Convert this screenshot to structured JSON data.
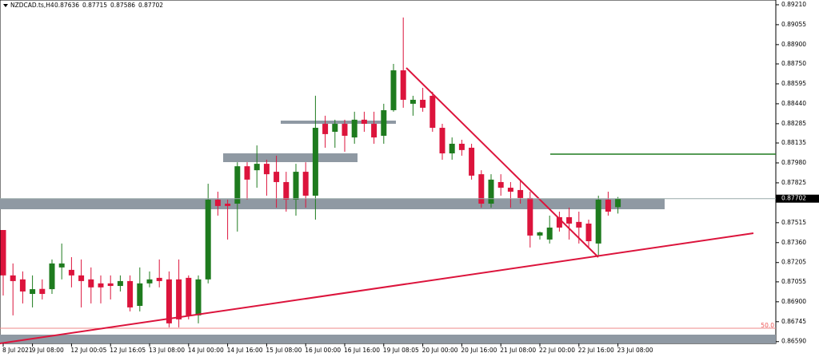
{
  "header": {
    "symbol": "NZDCAD.ts,H4",
    "ohlc": [
      0.87636,
      0.87715,
      0.87586,
      0.87702
    ]
  },
  "chart_data": {
    "type": "candlestick",
    "categories": [
      "8 Jul 2021",
      null,
      null,
      "9 Jul 08:00",
      null,
      null,
      null,
      "12 Jul 00:05",
      null,
      null,
      null,
      "12 Jul 16:05",
      null,
      null,
      null,
      "13 Jul 08:00",
      null,
      null,
      null,
      "14 Jul 00:00",
      null,
      null,
      null,
      "14 Jul 16:00",
      null,
      null,
      null,
      "15 Jul 08:00",
      null,
      null,
      null,
      "16 Jul 00:00",
      null,
      null,
      null,
      "16 Jul 16:00",
      null,
      null,
      null,
      "19 Jul 08:05",
      null,
      null,
      null,
      "20 Jul 00:00",
      null,
      null,
      null,
      "20 Jul 16:00",
      null,
      null,
      null,
      "21 Jul 08:00",
      null,
      null,
      null,
      "22 Jul 00:00",
      null,
      null,
      null,
      "22 Jul 16:00",
      null,
      null,
      null,
      "23 Jul 08:00"
    ],
    "candles": {
      "open": [
        0.87458,
        0.87105,
        0.87074,
        0.86961,
        0.87,
        0.86998,
        0.87167,
        0.87148,
        0.87105,
        0.87074,
        0.87043,
        0.87043,
        0.87023,
        0.87061,
        0.86868,
        0.87043,
        0.87086,
        0.87074,
        0.87074,
        0.87086,
        0.86794,
        0.87074,
        0.87694,
        0.87663,
        0.87663,
        0.87954,
        0.87923,
        0.87973,
        0.87911,
        0.87831,
        0.87694,
        0.87911,
        0.87725,
        0.88284,
        0.88222,
        0.88284,
        0.88178,
        0.88316,
        0.88284,
        0.88191,
        0.8839,
        0.887,
        0.8844,
        0.88471,
        0.88502,
        0.88253,
        0.88054,
        0.88129,
        0.88098,
        0.87892,
        0.87663,
        0.87831,
        0.87787,
        0.87769,
        0.87707,
        0.87415,
        0.87384,
        0.87558,
        0.87558,
        0.87521,
        0.87508,
        0.87353,
        0.87694,
        0.87636
      ],
      "high": [
        0.87458,
        0.87198,
        0.87136,
        0.87105,
        0.87074,
        0.87229,
        0.87353,
        0.87247,
        0.87229,
        0.87167,
        0.87105,
        0.87105,
        0.87105,
        0.87105,
        0.87167,
        0.87136,
        0.87229,
        0.87136,
        0.87229,
        0.87105,
        0.87105,
        0.87818,
        0.87756,
        0.87694,
        0.87985,
        0.87985,
        0.88116,
        0.88005,
        0.88036,
        0.87911,
        0.87973,
        0.87985,
        0.88502,
        0.88347,
        0.88316,
        0.88316,
        0.88378,
        0.88378,
        0.88378,
        0.8844,
        0.8875,
        0.89111,
        0.88502,
        0.88564,
        0.88533,
        0.88284,
        0.88178,
        0.8816,
        0.88129,
        0.87923,
        0.87892,
        0.87892,
        0.87831,
        0.8785,
        0.87756,
        0.87446,
        0.8757,
        0.87601,
        0.87632,
        0.87601,
        0.87539,
        0.87725,
        0.87756,
        0.87715
      ],
      "low": [
        0.86949,
        0.86794,
        0.86887,
        0.86856,
        0.86918,
        0.86961,
        0.87074,
        0.87012,
        0.86856,
        0.86887,
        0.86887,
        0.86918,
        0.8698,
        0.86825,
        0.86825,
        0.87012,
        0.87012,
        0.86701,
        0.86701,
        0.86763,
        0.86732,
        0.87043,
        0.8757,
        0.87384,
        0.87446,
        0.87694,
        0.87787,
        0.87725,
        0.87632,
        0.87601,
        0.8757,
        0.87632,
        0.87539,
        0.88098,
        0.88098,
        0.88067,
        0.88129,
        0.88222,
        0.88129,
        0.88129,
        0.88378,
        0.88409,
        0.88347,
        0.88378,
        0.88222,
        0.88005,
        0.88005,
        0.88036,
        0.8785,
        0.87632,
        0.87632,
        0.87725,
        0.87632,
        0.87663,
        0.87322,
        0.87384,
        0.87353,
        0.87446,
        0.87384,
        0.87353,
        0.87322,
        0.8726,
        0.8757,
        0.87586
      ],
      "close": [
        0.87105,
        0.87061,
        0.8698,
        0.86998,
        0.86961,
        0.87198,
        0.87198,
        0.87105,
        0.87061,
        0.87012,
        0.87012,
        0.87023,
        0.87061,
        0.86856,
        0.87043,
        0.87074,
        0.87061,
        0.86732,
        0.86763,
        0.86794,
        0.87074,
        0.87694,
        0.87645,
        0.87645,
        0.87954,
        0.8785,
        0.87973,
        0.87892,
        0.87831,
        0.87694,
        0.87911,
        0.87725,
        0.88253,
        0.88204,
        0.88284,
        0.88191,
        0.88316,
        0.88284,
        0.88178,
        0.8839,
        0.887,
        0.88471,
        0.88471,
        0.88409,
        0.88253,
        0.88054,
        0.88129,
        0.8808,
        0.87881,
        0.87663,
        0.8785,
        0.87787,
        0.87756,
        0.87707,
        0.87415,
        0.8744,
        0.87477,
        0.87477,
        0.87508,
        0.87477,
        0.87371,
        0.87694,
        0.87601,
        0.87702
      ]
    },
    "up_color": "#1e7b1e",
    "down_color": "#dc143c",
    "ylim": [
      0.86576,
      0.89247
    ],
    "yticks": [
      {
        "value": 0.8921,
        "label": "0.89210"
      },
      0.89055,
      {
        "value": 0.889,
        "label": "0.88900"
      },
      {
        "value": 0.8875,
        "label": "0.88750"
      },
      0.88595,
      {
        "value": 0.8844,
        "label": "0.88440"
      },
      0.88285,
      0.88135,
      {
        "value": 0.8798,
        "label": "0.87980"
      },
      0.87825,
      0.87515,
      {
        "value": 0.8736,
        "label": "0.87360"
      },
      0.87205,
      0.87055,
      {
        "value": 0.869,
        "label": "0.86900"
      },
      0.86745,
      {
        "value": 0.8659,
        "label": "0.86590"
      }
    ],
    "current_price": 0.87702,
    "annotations": [
      "50.0"
    ]
  }
}
